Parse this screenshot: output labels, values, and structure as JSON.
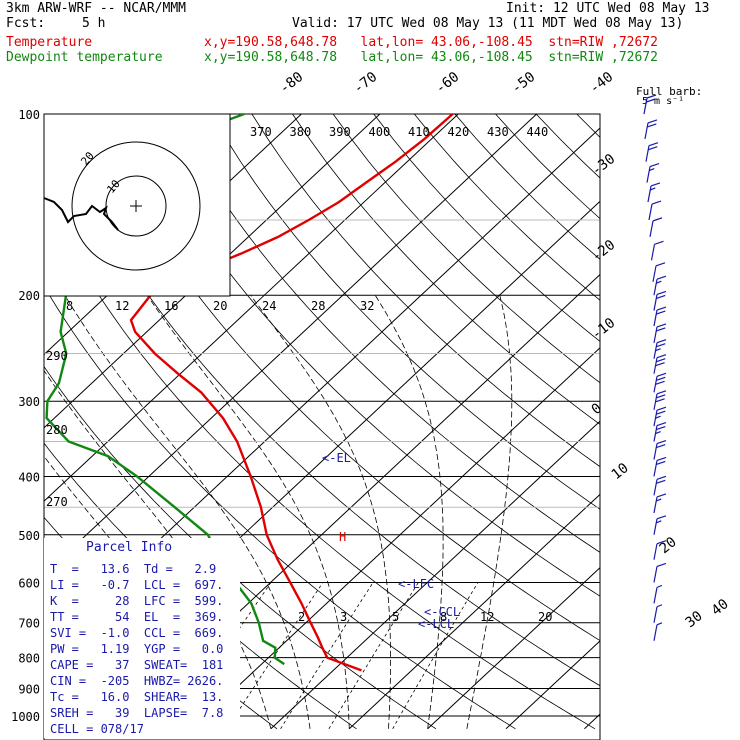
{
  "header": {
    "model": "3km ARW-WRF -- NCAR/MMM",
    "init": "Init: 12 UTC Wed 08 May 13",
    "fcst_label": "Fcst:",
    "fcst_value": "5 h",
    "valid": "Valid: 17 UTC Wed 08 May 13 (11 MDT Wed 08 May 13)",
    "temp_label": "Temperature",
    "temp_info": "x,y=190.58,648.78   lat,lon= 43.06,-108.45  stn=RIW ,72672",
    "dew_label": "Dewpoint temperature",
    "dew_info": "x,y=190.58,648.78   lat,lon= 43.06,-108.45  stn=RIW ,72672"
  },
  "colors": {
    "temperature": "#e00000",
    "dewpoint": "#118811",
    "barbs": "#1a1aaa",
    "grid": "#000000"
  },
  "chart_data": {
    "type": "line",
    "skewt": true,
    "pressure_levels": [
      100,
      200,
      300,
      400,
      500,
      600,
      700,
      800,
      900,
      1000
    ],
    "pressure_ticks": [
      "100",
      "200",
      "300",
      "400",
      "500",
      "600",
      "700",
      "800",
      "900",
      "1000"
    ],
    "temperature_ticks": [
      "-80",
      "-70",
      "-60",
      "-50",
      "-40",
      "-30",
      "-20",
      "-10",
      "0",
      "10",
      "20",
      "30",
      "40"
    ],
    "theta_labels": [
      "370",
      "380",
      "390",
      "400",
      "410",
      "420",
      "430",
      "440"
    ],
    "theta_left_labels": [
      "290",
      "280",
      "270"
    ],
    "mixing_ratio_labels": [
      "2",
      "3",
      "5",
      "8",
      "12",
      "20"
    ],
    "kts_scale_label": "kts",
    "kts_scale": [
      "8",
      "12",
      "16",
      "20",
      "24",
      "28",
      "32"
    ],
    "barb_legend": "Full barb:",
    "barb_legend_units": "5 m s⁻¹",
    "hodograph_rings": [
      "10",
      "20"
    ],
    "annotations": {
      "el": "<-EL",
      "lfc": "<-LFC",
      "ccl": "<-CCL",
      "lcl": "<-LCL",
      "parcel_marker": "H"
    },
    "series": [
      {
        "name": "Temperature",
        "color": "#e00000",
        "points": [
          [
            840,
            13.6
          ],
          [
            800,
            7.5
          ],
          [
            770,
            5.5
          ],
          [
            740,
            3.5
          ],
          [
            700,
            0.6
          ],
          [
            650,
            -3.2
          ],
          [
            600,
            -7.5
          ],
          [
            550,
            -12.2
          ],
          [
            500,
            -17.0
          ],
          [
            450,
            -21.5
          ],
          [
            400,
            -27.0
          ],
          [
            350,
            -33.5
          ],
          [
            320,
            -38.5
          ],
          [
            290,
            -44.8
          ],
          [
            270,
            -50.3
          ],
          [
            250,
            -56.0
          ],
          [
            230,
            -61.5
          ],
          [
            220,
            -63.6
          ],
          [
            200,
            -64.5
          ],
          [
            190,
            -63.4
          ],
          [
            180,
            -61.1
          ],
          [
            170,
            -58.5
          ],
          [
            160,
            -56.2
          ],
          [
            150,
            -54.6
          ],
          [
            140,
            -53.2
          ],
          [
            130,
            -52.4
          ],
          [
            120,
            -51.5
          ],
          [
            110,
            -50.9
          ],
          [
            100,
            -50.7
          ]
        ]
      },
      {
        "name": "Dewpoint temperature",
        "color": "#118811",
        "points": [
          [
            820,
            2.9
          ],
          [
            800,
            0.8
          ],
          [
            770,
            -0.5
          ],
          [
            750,
            -3.0
          ],
          [
            700,
            -6.0
          ],
          [
            650,
            -9.6
          ],
          [
            600,
            -14.5
          ],
          [
            550,
            -19.4
          ],
          [
            500,
            -24.5
          ],
          [
            450,
            -32.5
          ],
          [
            400,
            -41.5
          ],
          [
            370,
            -48.0
          ],
          [
            350,
            -55.0
          ],
          [
            320,
            -61.0
          ],
          [
            300,
            -63.2
          ],
          [
            280,
            -64.2
          ],
          [
            250,
            -67.3
          ],
          [
            230,
            -71.0
          ],
          [
            200,
            -75.3
          ],
          [
            180,
            -75.9
          ],
          [
            160,
            -76.5
          ],
          [
            150,
            -77.6
          ],
          [
            140,
            -78.9
          ],
          [
            130,
            -81.0
          ],
          [
            125,
            -84.5
          ],
          [
            115,
            -84.2
          ],
          [
            105,
            -80.0
          ],
          [
            100,
            -77.3
          ]
        ]
      }
    ],
    "wind_barbs": [
      {
        "p": 100,
        "kt": 22
      },
      {
        "p": 110,
        "kt": 20
      },
      {
        "p": 120,
        "kt": 20
      },
      {
        "p": 130,
        "kt": 18
      },
      {
        "p": 140,
        "kt": 15
      },
      {
        "p": 150,
        "kt": 12
      },
      {
        "p": 160,
        "kt": 11
      },
      {
        "p": 175,
        "kt": 10
      },
      {
        "p": 190,
        "kt": 12
      },
      {
        "p": 200,
        "kt": 18
      },
      {
        "p": 212,
        "kt": 20
      },
      {
        "p": 225,
        "kt": 22
      },
      {
        "p": 240,
        "kt": 24
      },
      {
        "p": 255,
        "kt": 28
      },
      {
        "p": 270,
        "kt": 30
      },
      {
        "p": 290,
        "kt": 32
      },
      {
        "p": 310,
        "kt": 30
      },
      {
        "p": 330,
        "kt": 28
      },
      {
        "p": 350,
        "kt": 26
      },
      {
        "p": 375,
        "kt": 24
      },
      {
        "p": 400,
        "kt": 22
      },
      {
        "p": 430,
        "kt": 20
      },
      {
        "p": 460,
        "kt": 18
      },
      {
        "p": 500,
        "kt": 15
      },
      {
        "p": 550,
        "kt": 12
      },
      {
        "p": 600,
        "kt": 10
      },
      {
        "p": 650,
        "kt": 8
      },
      {
        "p": 700,
        "kt": 6
      },
      {
        "p": 750,
        "kt": 5
      }
    ]
  },
  "parcel_info": {
    "title": "Parcel Info",
    "rows": [
      "T  =   13.6  Td =   2.9",
      "LI =   -0.7  LCL =  697.",
      "K  =     28  LFC =  599.",
      "TT =     54  EL  =  369.",
      "SVI =  -1.0  CCL =  669.",
      "PW =   1.19  YGP =   0.0",
      "CAPE =   37  SWEAT=  181",
      "CIN =  -205  HWBZ= 2626.",
      "Tc =   16.0  SHEAR=  13.",
      "SREH =   39  LAPSE=  7.8",
      "CELL = 078/17"
    ]
  }
}
